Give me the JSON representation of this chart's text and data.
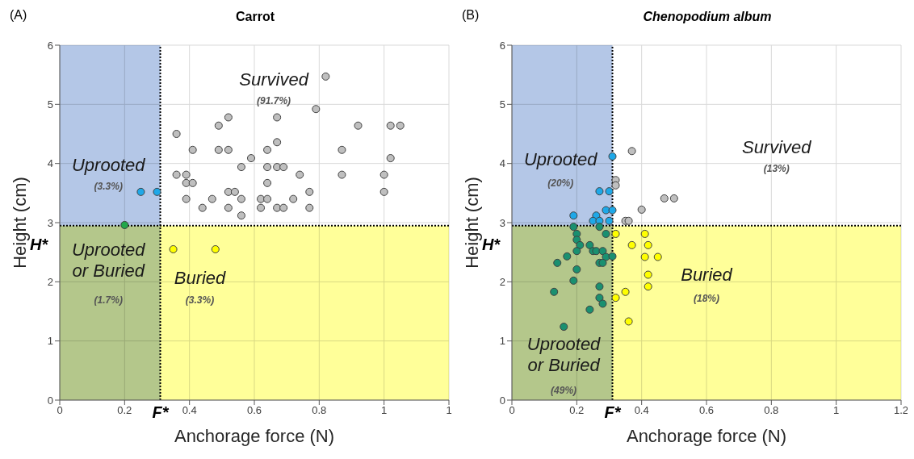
{
  "chart_data": [
    {
      "type": "scatter",
      "subtitle": "(A)",
      "title": "Carrot",
      "xlabel": "Anchorage force (N)",
      "ylabel": "Height (cm)",
      "xlim": [
        0,
        1.2
      ],
      "ylim": [
        0,
        6
      ],
      "xticks": [
        0,
        0.2,
        0.4,
        0.6,
        0.8,
        1,
        {
          "value": 1.2,
          "label": "1"
        }
      ],
      "yticks": [
        0,
        1,
        2,
        3,
        4,
        5,
        6
      ],
      "grid": true,
      "marker": "circle",
      "bands": [
        {
          "axis": "x",
          "from": 0,
          "to": 0.31,
          "color": "#b4c7e7"
        },
        {
          "axis": "y",
          "from": 0,
          "to": 2.95,
          "color": "#ffff99"
        }
      ],
      "ref_lines": [
        {
          "axis": "x",
          "value": 0.31,
          "label": "F*",
          "line_style": "dotted"
        },
        {
          "axis": "y",
          "value": 2.95,
          "label": "H*",
          "line_style": "dotted"
        }
      ],
      "annotations": [
        "Survived",
        "(91.7%)",
        "Uprooted",
        "(3.3%)",
        "Uprooted\nor Buried",
        "(1.7%)",
        "Buried",
        "(3.3%)"
      ],
      "series": [
        {
          "color": "#bfbfbf",
          "x": [
            0.82,
            0.79,
            0.36,
            0.49,
            0.52,
            0.67,
            0.92,
            1.02,
            1.05,
            0.67,
            0.41,
            0.49,
            0.52,
            0.64,
            0.87,
            0.59,
            1.02,
            0.56,
            0.64,
            0.67,
            0.69,
            0.36,
            0.39,
            0.74,
            0.87,
            1.0,
            0.39,
            0.41,
            0.64,
            0.52,
            0.54,
            0.77,
            1.0,
            0.39,
            0.47,
            0.56,
            0.62,
            0.64,
            0.72,
            0.44,
            0.52,
            0.62,
            0.67,
            0.69,
            0.77,
            0.56
          ],
          "values": [
            5.47,
            4.92,
            4.5,
            4.64,
            4.78,
            4.78,
            4.64,
            4.64,
            4.64,
            4.36,
            4.23,
            4.23,
            4.23,
            4.23,
            4.23,
            4.09,
            4.09,
            3.94,
            3.94,
            3.94,
            3.94,
            3.81,
            3.81,
            3.81,
            3.81,
            3.81,
            3.67,
            3.67,
            3.67,
            3.52,
            3.52,
            3.52,
            3.52,
            3.4,
            3.4,
            3.4,
            3.4,
            3.4,
            3.4,
            3.25,
            3.25,
            3.25,
            3.25,
            3.25,
            3.25,
            3.12
          ]
        },
        {
          "color": "#1fa8e8",
          "x": [
            0.25,
            0.3
          ],
          "values": [
            3.52,
            3.52
          ]
        },
        {
          "color": "#22a84a",
          "x": [
            0.2
          ],
          "values": [
            2.96
          ]
        },
        {
          "color": "#ffff00",
          "x": [
            0.35,
            0.48
          ],
          "values": [
            2.55,
            2.55
          ]
        }
      ]
    },
    {
      "type": "scatter",
      "subtitle": "(B)",
      "title": "Chenopodium album",
      "xlabel": "Anchorage force (N)",
      "ylabel": "Height (cm)",
      "xlim": [
        0,
        1.2
      ],
      "ylim": [
        0,
        6
      ],
      "xticks": [
        0,
        0.2,
        0.4,
        0.6,
        0.8,
        1,
        1.2
      ],
      "yticks": [
        0,
        1,
        2,
        3,
        4,
        5,
        6
      ],
      "grid": true,
      "marker": "circle",
      "bands": [
        {
          "axis": "x",
          "from": 0,
          "to": 0.31,
          "color": "#b4c7e7"
        },
        {
          "axis": "y",
          "from": 0,
          "to": 2.95,
          "color": "#ffff99"
        }
      ],
      "ref_lines": [
        {
          "axis": "x",
          "value": 0.31,
          "label": "F*",
          "line_style": "dotted"
        },
        {
          "axis": "y",
          "value": 2.95,
          "label": "H*",
          "line_style": "dotted"
        }
      ],
      "annotations": [
        "Survived",
        "(13%)",
        "Uprooted",
        "(20%)",
        "Buried",
        "(18%)",
        "Uprooted\nor Buried",
        "(49%)"
      ],
      "series": [
        {
          "color": "#bfbfbf",
          "x": [
            0.37,
            0.32,
            0.32,
            0.4,
            0.35,
            0.36,
            0.47,
            0.5
          ],
          "values": [
            4.21,
            3.72,
            3.63,
            3.22,
            3.03,
            3.03,
            3.41,
            3.41
          ]
        },
        {
          "color": "#1fa8e8",
          "x": [
            0.31,
            0.27,
            0.3,
            0.29,
            0.31,
            0.19,
            0.26,
            0.25,
            0.27,
            0.3
          ],
          "values": [
            4.12,
            3.53,
            3.53,
            3.21,
            3.21,
            3.12,
            3.12,
            3.03,
            3.03,
            3.03
          ]
        },
        {
          "color": "#1a9070",
          "x": [
            0.19,
            0.27,
            0.2,
            0.29,
            0.2,
            0.21,
            0.24,
            0.25,
            0.26,
            0.2,
            0.28,
            0.17,
            0.29,
            0.31,
            0.14,
            0.27,
            0.28,
            0.2,
            0.19,
            0.27,
            0.13,
            0.27,
            0.28,
            0.24,
            0.16
          ],
          "values": [
            2.93,
            2.93,
            2.81,
            2.81,
            2.71,
            2.62,
            2.62,
            2.52,
            2.52,
            2.52,
            2.52,
            2.43,
            2.42,
            2.43,
            2.32,
            2.32,
            2.32,
            2.21,
            2.02,
            1.92,
            1.83,
            1.73,
            1.63,
            1.53,
            1.24
          ]
        },
        {
          "color": "#ffff00",
          "x": [
            0.32,
            0.41,
            0.37,
            0.42,
            0.41,
            0.45,
            0.42,
            0.42,
            0.35,
            0.32,
            0.36
          ],
          "values": [
            2.81,
            2.81,
            2.62,
            2.62,
            2.42,
            2.42,
            2.12,
            1.92,
            1.83,
            1.73,
            1.33
          ]
        }
      ]
    }
  ]
}
